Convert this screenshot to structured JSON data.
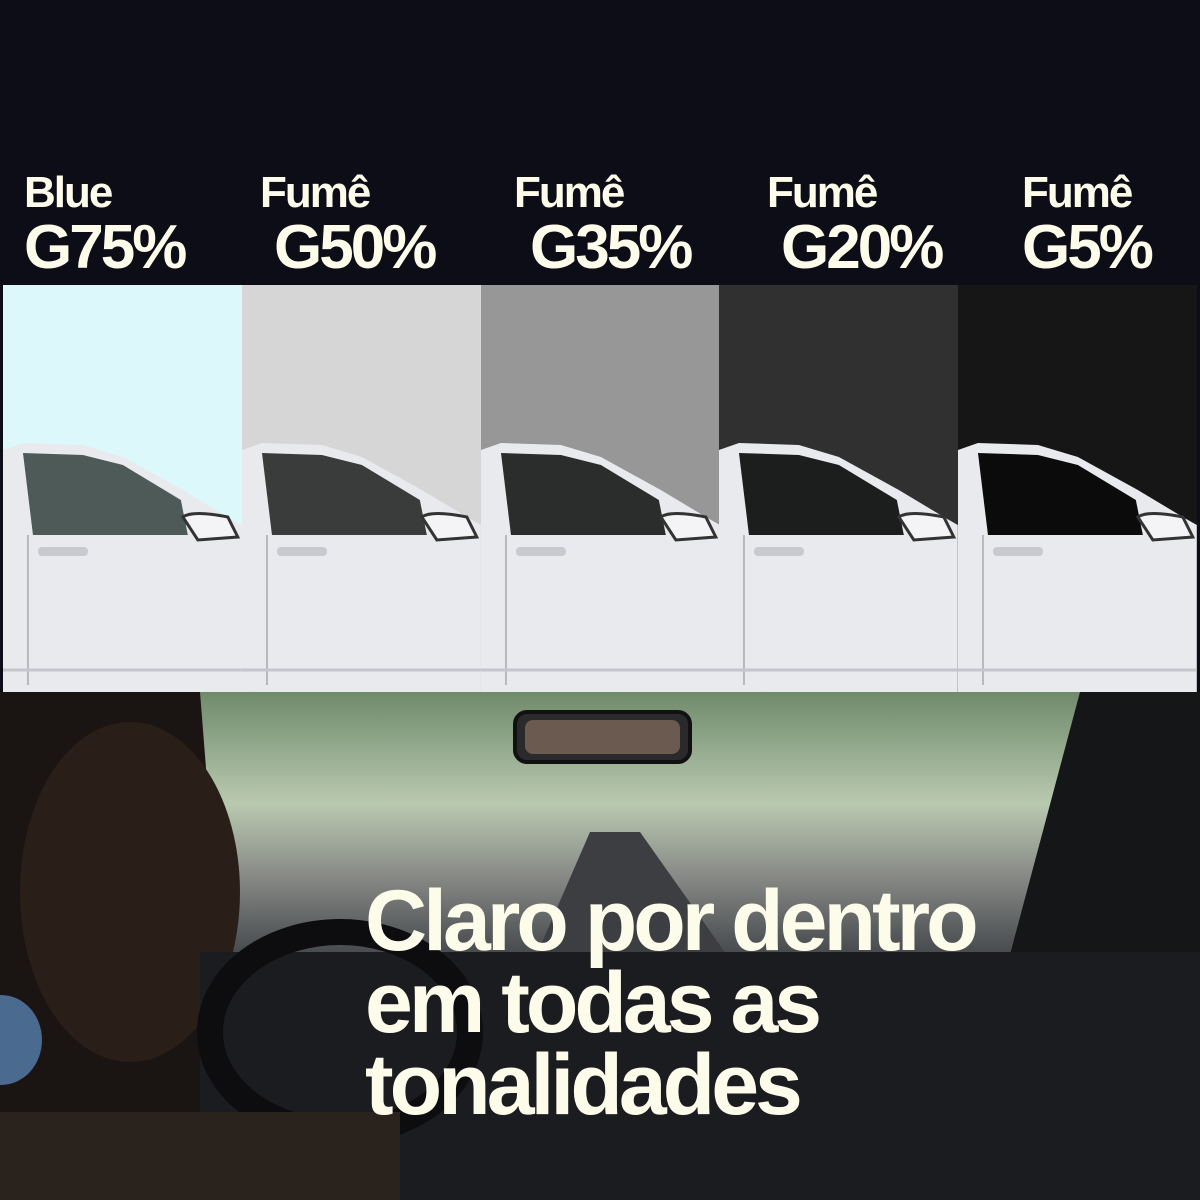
{
  "tints": [
    {
      "line1": "Blue",
      "line2": "G75%",
      "sky": "#dcf8fb",
      "window": "#4d5a58"
    },
    {
      "line1": "Fumê",
      "line2": "G50%",
      "sky": "#d6d6d6",
      "window": "#3a3c3c"
    },
    {
      "line1": "Fumê",
      "line2": "G35%",
      "sky": "#979797",
      "window": "#2b2d2d"
    },
    {
      "line1": "Fumê",
      "line2": "G20%",
      "sky": "#303030",
      "window": "#1c1d1d"
    },
    {
      "line1": "Fumê",
      "line2": "G5%",
      "sky": "#161616",
      "window": "#0b0b0b"
    }
  ],
  "headline": {
    "line1": "Claro por dentro",
    "line2": "em todas as",
    "line3": "tonalidades"
  },
  "colors": {
    "background": "#0c0d16",
    "text": "#fdfbea",
    "accent_dot": "#4a6a8f"
  }
}
